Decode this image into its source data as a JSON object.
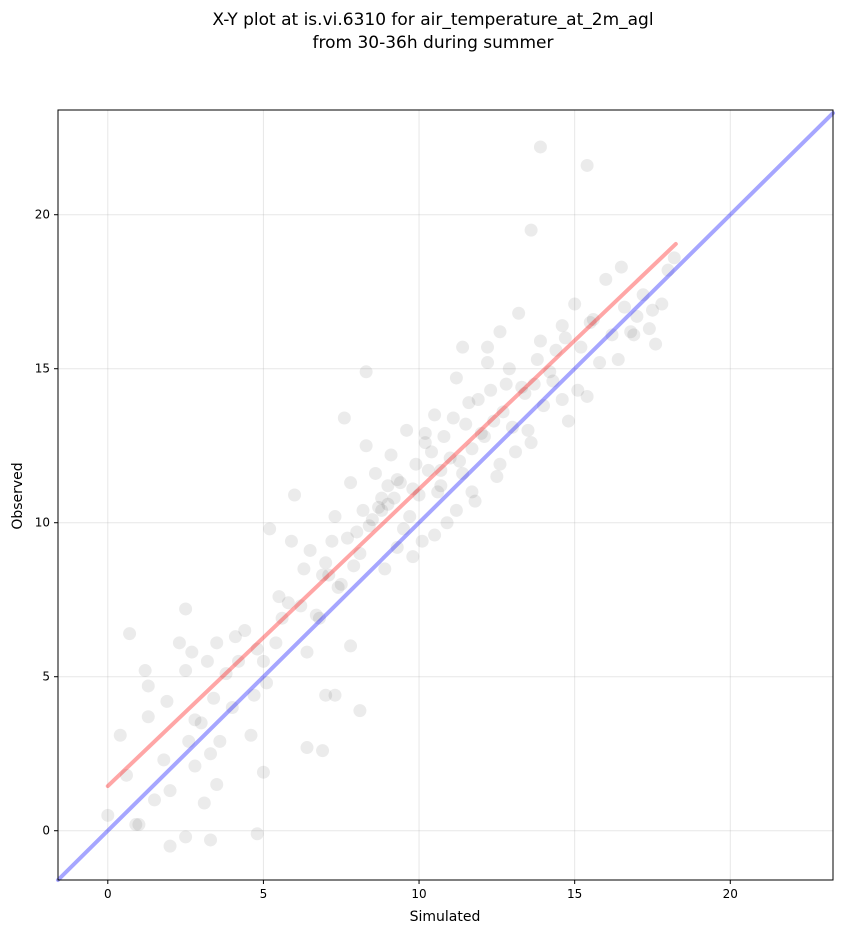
{
  "chart_data": {
    "type": "scatter",
    "title_lines": [
      "X-Y plot at is.vi.6310 for air_temperature_at_2m_agl",
      "from 30-36h during summer"
    ],
    "xlabel": "Simulated",
    "ylabel": "Observed",
    "xlim": [
      -1.6,
      23.3
    ],
    "ylim": [
      -1.6,
      23.4
    ],
    "xticks": [
      0,
      5,
      10,
      15,
      20
    ],
    "yticks": [
      0,
      5,
      10,
      15,
      20
    ],
    "grid": true,
    "point_color": "#000000",
    "point_alpha": 0.08,
    "points": {
      "x": [
        0.0,
        0.6,
        0.7,
        1.0,
        1.2,
        1.3,
        1.3,
        1.5,
        1.8,
        1.9,
        2.0,
        2.3,
        2.5,
        2.5,
        2.6,
        2.7,
        2.8,
        3.0,
        3.1,
        3.2,
        3.4,
        3.5,
        3.5,
        3.6,
        3.8,
        4.0,
        4.2,
        4.4,
        4.6,
        4.8,
        5.0,
        5.2,
        5.4,
        5.5,
        5.6,
        5.8,
        6.0,
        6.2,
        6.3,
        6.5,
        6.7,
        6.9,
        7.0,
        7.2,
        7.3,
        7.5,
        7.7,
        7.8,
        8.0,
        8.2,
        8.3,
        8.5,
        8.6,
        8.8,
        9.0,
        9.1,
        9.3,
        9.5,
        9.6,
        9.8,
        10.0,
        10.2,
        10.3,
        10.5,
        10.7,
        10.8,
        11.0,
        11.2,
        11.4,
        11.5,
        11.7,
        11.9,
        12.0,
        12.2,
        12.4,
        12.6,
        12.8,
        13.0,
        13.2,
        13.4,
        13.6,
        13.8,
        14.0,
        14.2,
        14.4,
        14.6,
        14.8,
        15.0,
        15.2,
        15.4,
        15.6,
        15.8,
        16.0,
        16.2,
        16.4,
        16.6,
        16.8,
        17.0,
        17.2,
        17.4,
        17.6,
        17.8,
        18.0,
        18.2,
        2.8,
        3.3,
        4.1,
        4.7,
        5.1,
        5.9,
        6.4,
        6.8,
        7.1,
        7.4,
        7.9,
        8.1,
        8.4,
        8.7,
        8.9,
        9.2,
        9.4,
        9.7,
        9.9,
        10.1,
        10.4,
        10.6,
        10.9,
        11.1,
        11.3,
        11.6,
        11.8,
        12.1,
        12.3,
        12.5,
        12.7,
        12.9,
        13.1,
        13.3,
        13.5,
        13.9,
        14.3,
        14.7,
        15.1,
        15.5,
        7.6,
        8.3,
        8.8,
        9.3,
        9.8,
        10.2,
        10.7,
        11.2,
        11.7,
        12.2,
        13.6,
        13.9,
        15.4,
        16.5,
        4.8,
        5.0,
        6.4,
        6.9,
        7.0,
        7.8,
        2.0,
        2.5,
        3.3,
        0.4,
        0.9,
        7.3,
        8.1,
        9.0,
        10.5,
        11.4,
        12.6,
        13.7,
        14.6,
        16.9,
        17.5
      ],
      "y": [
        0.5,
        1.8,
        6.4,
        0.2,
        5.2,
        4.7,
        3.7,
        1.0,
        2.3,
        4.2,
        1.3,
        6.1,
        5.2,
        7.2,
        2.9,
        5.8,
        2.1,
        3.5,
        0.9,
        5.5,
        4.3,
        1.5,
        6.1,
        2.9,
        5.1,
        4.0,
        5.5,
        6.5,
        3.1,
        5.9,
        5.5,
        9.8,
        6.1,
        7.6,
        6.9,
        7.4,
        10.9,
        7.3,
        8.5,
        9.1,
        7.0,
        8.3,
        8.7,
        9.4,
        10.2,
        8.0,
        9.5,
        11.3,
        9.7,
        10.4,
        12.5,
        10.1,
        11.6,
        10.8,
        10.6,
        12.2,
        11.4,
        9.8,
        13.0,
        11.1,
        10.9,
        12.6,
        11.7,
        13.5,
        11.2,
        12.8,
        12.1,
        14.7,
        11.6,
        13.2,
        12.4,
        14.0,
        12.9,
        15.7,
        13.3,
        11.9,
        14.5,
        13.1,
        16.8,
        14.2,
        12.6,
        15.3,
        13.8,
        14.9,
        15.6,
        16.4,
        13.3,
        17.1,
        15.7,
        14.1,
        16.6,
        15.2,
        17.9,
        16.1,
        15.3,
        17.0,
        16.2,
        16.7,
        17.4,
        16.3,
        15.8,
        17.1,
        18.2,
        18.6,
        3.6,
        2.5,
        6.3,
        4.4,
        4.8,
        9.4,
        5.8,
        6.9,
        8.3,
        7.9,
        8.6,
        9.0,
        9.9,
        10.5,
        8.5,
        10.8,
        11.3,
        10.2,
        11.9,
        9.4,
        12.3,
        11.0,
        10.0,
        13.4,
        12.0,
        13.9,
        10.7,
        12.8,
        14.3,
        11.5,
        13.6,
        15.0,
        12.3,
        14.4,
        13.0,
        15.9,
        14.6,
        16.0,
        14.3,
        16.5,
        13.4,
        14.9,
        10.4,
        9.2,
        8.9,
        12.9,
        11.7,
        10.4,
        11.0,
        15.2,
        19.5,
        22.2,
        21.6,
        18.3,
        -0.1,
        1.9,
        2.7,
        2.6,
        4.4,
        6.0,
        -0.5,
        -0.2,
        -0.3,
        3.1,
        0.2,
        4.4,
        3.9,
        11.2,
        9.6,
        15.7,
        16.2,
        14.5,
        14.0,
        16.1,
        16.9
      ]
    },
    "lines": [
      {
        "color": "#ff0000",
        "alpha": 0.35,
        "x": [
          0.0,
          18.25
        ],
        "y": [
          1.45,
          19.05
        ]
      },
      {
        "color": "#0000ff",
        "alpha": 0.35,
        "x": [
          -1.6,
          23.3
        ],
        "y": [
          -1.6,
          23.3
        ]
      }
    ]
  }
}
